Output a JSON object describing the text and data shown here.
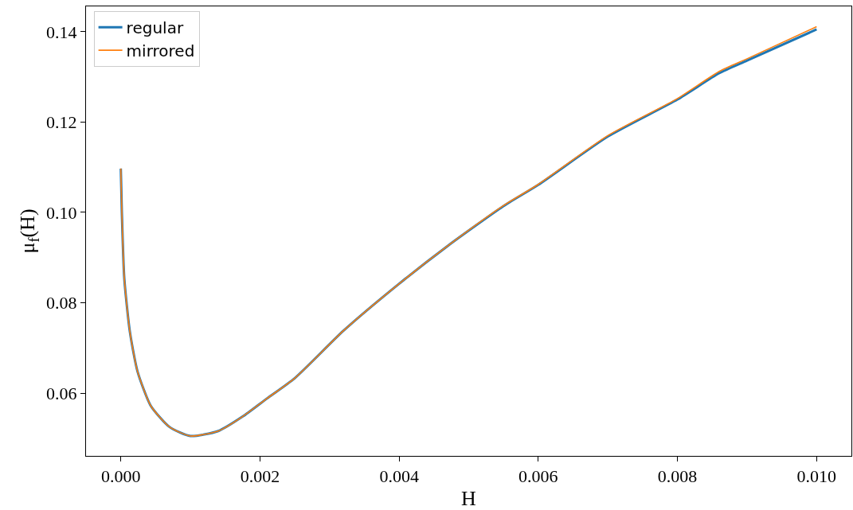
{
  "chart_data": {
    "type": "line",
    "xlabel": "H",
    "ylabel": "μ$_{f}$(H)",
    "x": [
      0,
      1.5e-05,
      5e-05,
      0.00013,
      0.00024,
      0.00043,
      0.0007,
      0.001,
      0.0014,
      0.00175,
      0.0021,
      0.0025,
      0.0032,
      0.004,
      0.0047,
      0.0055,
      0.006,
      0.007,
      0.008,
      0.0086,
      0.009,
      0.01
    ],
    "series": [
      {
        "name": "regular",
        "color": "#1f77b4",
        "values": [
          0.1097,
          0.1,
          0.0854,
          0.0736,
          0.0648,
          0.0572,
          0.0525,
          0.0505,
          0.0516,
          0.0548,
          0.0588,
          0.0633,
          0.0738,
          0.0842,
          0.0926,
          0.1014,
          0.1061,
          0.1168,
          0.125,
          0.1308,
          0.1336,
          0.1405
        ]
      },
      {
        "name": "mirrored",
        "color": "#ff7f0e",
        "values": [
          0.1097,
          0.1,
          0.0854,
          0.0736,
          0.0648,
          0.0572,
          0.0525,
          0.0505,
          0.0516,
          0.0548,
          0.0588,
          0.0633,
          0.0738,
          0.0842,
          0.0926,
          0.1015,
          0.1062,
          0.117,
          0.1252,
          0.1312,
          0.134,
          0.1411
        ]
      }
    ],
    "xlim": [
      -0.0005,
      0.0105
    ],
    "ylim": [
      0.0461,
      0.1456
    ],
    "xticks": [
      {
        "value": 0,
        "label": "0.000"
      },
      {
        "value": 0.002,
        "label": "0.002"
      },
      {
        "value": 0.004,
        "label": "0.004"
      },
      {
        "value": 0.006,
        "label": "0.006"
      },
      {
        "value": 0.008,
        "label": "0.008"
      },
      {
        "value": 0.01,
        "label": "0.010"
      }
    ],
    "yticks": [
      {
        "value": 0.06,
        "label": "0.06"
      },
      {
        "value": 0.08,
        "label": "0.08"
      },
      {
        "value": 0.1,
        "label": "0.10"
      },
      {
        "value": 0.12,
        "label": "0.12"
      },
      {
        "value": 0.14,
        "label": "0.14"
      }
    ],
    "grid": false,
    "legend": "top left",
    "line_style": "solid",
    "marker": "none"
  }
}
